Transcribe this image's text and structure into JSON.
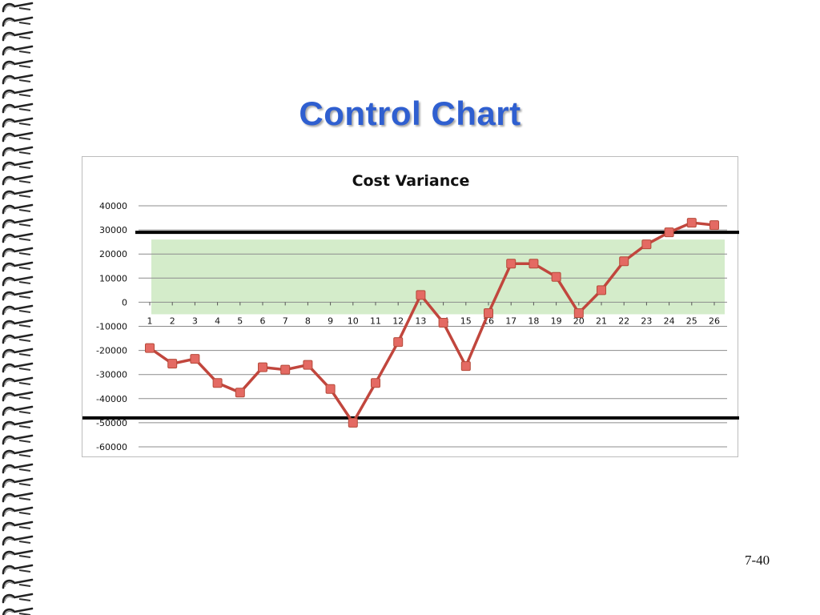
{
  "slide": {
    "title": "Control Chart",
    "page_number": "7-40"
  },
  "colors": {
    "title": "#2f5fd0",
    "series_line": "#c1463d",
    "marker_fill": "#e46a63",
    "marker_stroke": "#b54a3a",
    "acceptable_band": "#d4ecca",
    "control_limit": "#000000",
    "gridline": "#8c8c8c"
  },
  "chart_data": {
    "type": "line",
    "title": "Cost Variance",
    "xlabel": "",
    "ylabel": "",
    "ylim": [
      -60000,
      40000
    ],
    "y_ticks": [
      40000,
      30000,
      20000,
      10000,
      0,
      -10000,
      -20000,
      -30000,
      -40000,
      -50000,
      -60000
    ],
    "y_tick_labels": [
      "40000",
      "30000",
      "20000",
      "10000",
      "0",
      "-10000",
      "-20000",
      "-30000",
      "-40000",
      "-50000",
      "-60000"
    ],
    "categories": [
      "1",
      "2",
      "3",
      "4",
      "5",
      "6",
      "7",
      "8",
      "9",
      "10",
      "11",
      "12",
      "13",
      "14",
      "15",
      "16",
      "17",
      "18",
      "19",
      "20",
      "21",
      "22",
      "23",
      "24",
      "25",
      "26"
    ],
    "values": [
      -19000,
      -25500,
      -23500,
      -33500,
      -37500,
      -27000,
      -28000,
      -26000,
      -36000,
      -50000,
      -33500,
      -16500,
      3000,
      -8500,
      -26500,
      -4500,
      16000,
      16000,
      10500,
      -4500,
      5000,
      17000,
      24000,
      29000,
      33000,
      32000
    ],
    "grid": true,
    "legend": "none",
    "control_limits": {
      "upper": 29000,
      "lower": -48000
    },
    "acceptable_band": {
      "upper": 26000,
      "lower": -5000
    }
  }
}
